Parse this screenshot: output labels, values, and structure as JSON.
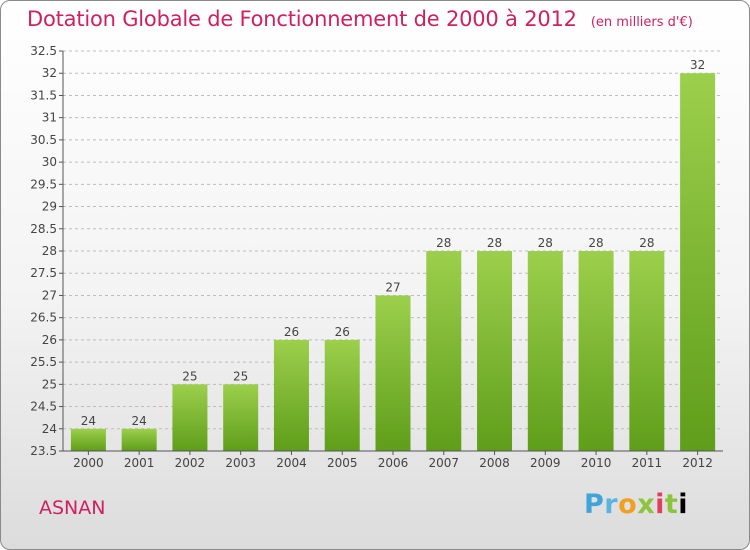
{
  "title": "Dotation Globale de Fonctionnement de 2000 à 2012",
  "subtitle": "(en milliers d'€)",
  "location": "ASNAN",
  "logo": {
    "text": "Proxiti",
    "letters": [
      "P",
      "r",
      "o",
      "x",
      "i",
      "t",
      "i"
    ]
  },
  "colors": {
    "title": "#d02060",
    "bar_top": "#9ccf4c",
    "bar_bottom": "#5f9e1a",
    "grid": "#bdbdbd"
  },
  "chart_data": {
    "type": "bar",
    "categories": [
      "2000",
      "2001",
      "2002",
      "2003",
      "2004",
      "2005",
      "2006",
      "2007",
      "2008",
      "2009",
      "2010",
      "2011",
      "2012"
    ],
    "values": [
      24,
      24,
      25,
      25,
      26,
      26,
      27,
      28,
      28,
      28,
      28,
      28,
      32
    ],
    "data_labels": [
      "24",
      "24",
      "25",
      "25",
      "26",
      "26",
      "27",
      "28",
      "28",
      "28",
      "28",
      "28",
      "32"
    ],
    "ylim": [
      23.5,
      32.5
    ],
    "yticks": [
      "23.5",
      "24",
      "24.5",
      "25",
      "25.5",
      "26",
      "26.5",
      "27",
      "27.5",
      "28",
      "28.5",
      "29",
      "29.5",
      "30",
      "30.5",
      "31",
      "31.5",
      "32",
      "32.5"
    ],
    "grid": true,
    "xlabel": "",
    "ylabel": ""
  }
}
